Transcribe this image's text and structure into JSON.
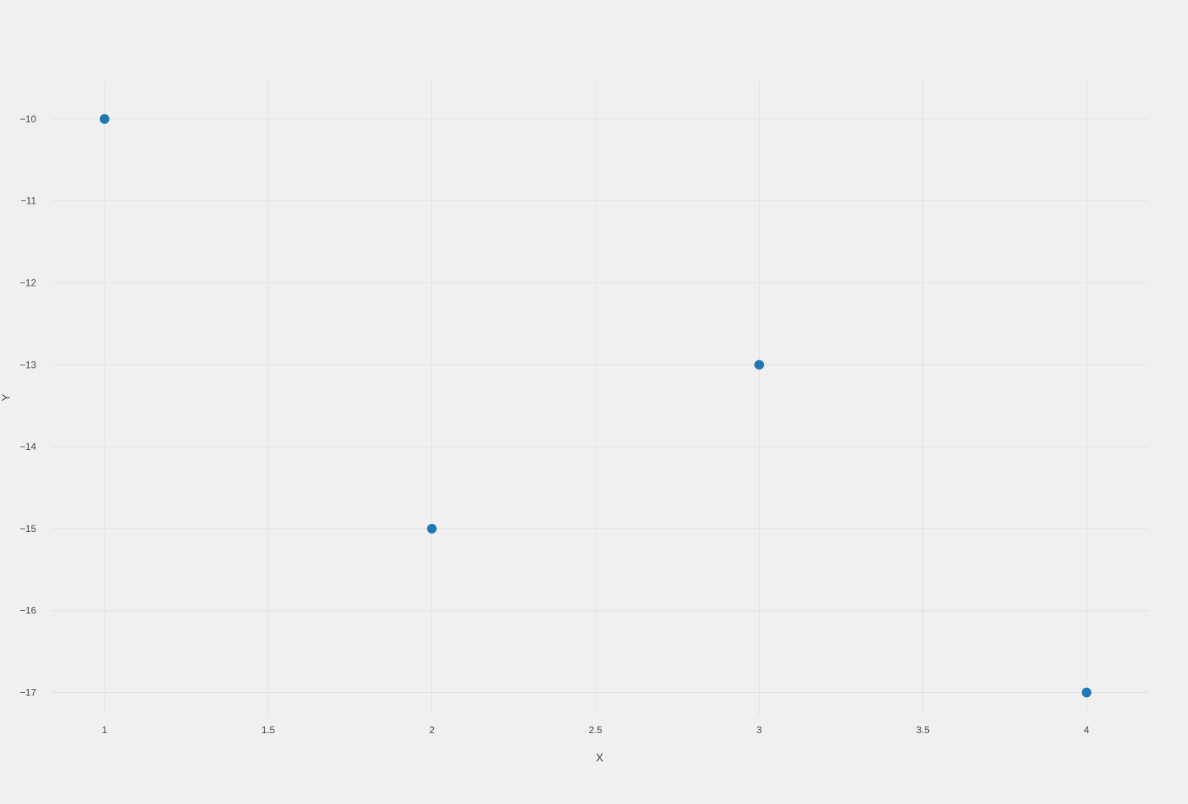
{
  "chart_data": {
    "type": "scatter",
    "title": "",
    "xlabel": "X",
    "ylabel": "Y",
    "xlim": [
      0.838,
      4.187
    ],
    "ylim": [
      -17.27,
      -9.53
    ],
    "x_ticks": [
      1,
      1.5,
      2,
      2.5,
      3,
      3.5,
      4
    ],
    "x_tick_labels": [
      "1",
      "1.5",
      "2",
      "2.5",
      "3",
      "3.5",
      "4"
    ],
    "y_ticks": [
      -10,
      -11,
      -12,
      -13,
      -14,
      -15,
      -16,
      -17
    ],
    "y_tick_labels": [
      "−10",
      "−11",
      "−12",
      "−13",
      "−14",
      "−15",
      "−16",
      "−17"
    ],
    "grid": true,
    "legend": "none",
    "series": [
      {
        "x": [
          1,
          2,
          3,
          4
        ],
        "y": [
          -10,
          -15,
          -13,
          -17
        ],
        "color": "#1f77b4",
        "mode": "markers"
      }
    ]
  }
}
